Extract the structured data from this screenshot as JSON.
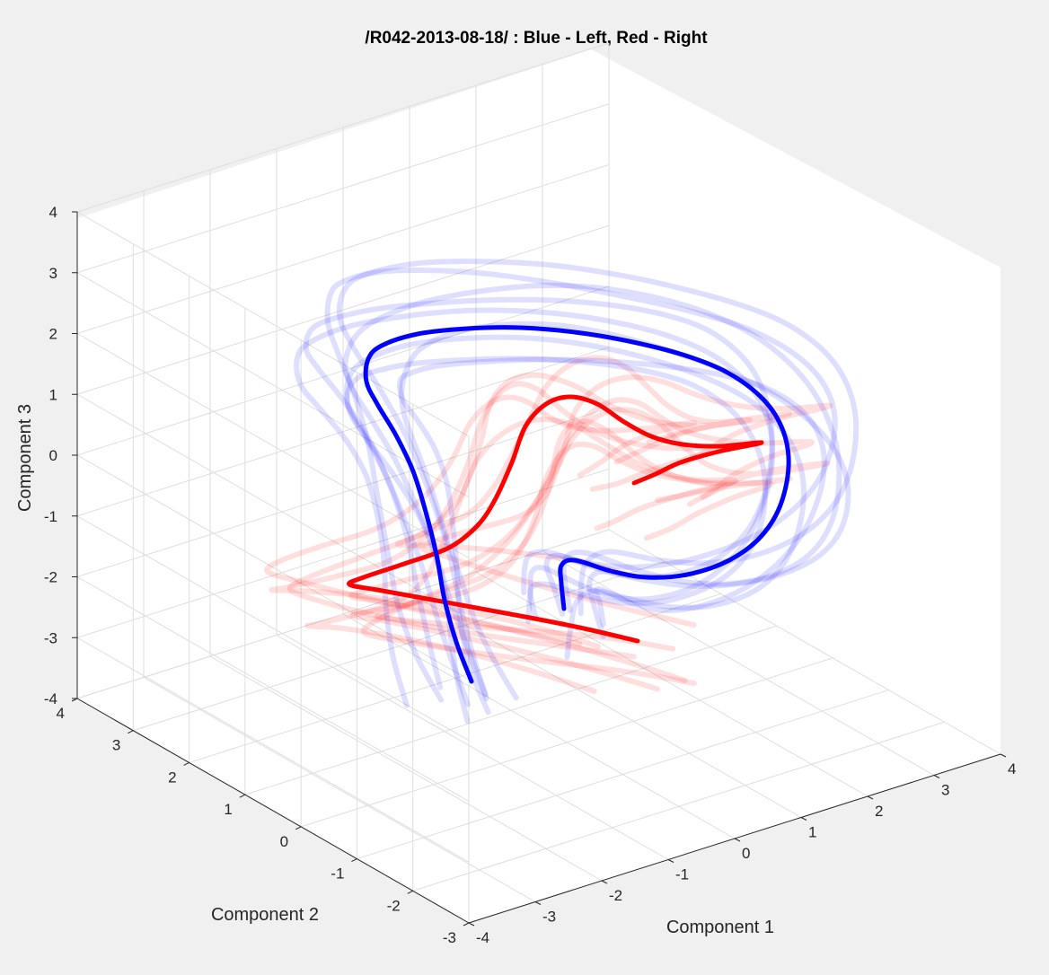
{
  "chart_data": {
    "type": "line3d",
    "title": "/R042-2013-08-18/ : Blue - Left, Red - Right",
    "xlabel": "Component 1",
    "ylabel": "Component 2",
    "zlabel": "Component 3",
    "xlim": [
      -4,
      4
    ],
    "ylim": [
      -3,
      4
    ],
    "zlim": [
      -4,
      4
    ],
    "x_ticks": [
      "-4",
      "-3",
      "-2",
      "-1",
      "0",
      "1",
      "2",
      "3",
      "4"
    ],
    "y_ticks": [
      "-3",
      "-2",
      "-1",
      "0",
      "1",
      "2",
      "3",
      "4"
    ],
    "z_ticks": [
      "-4",
      "-3",
      "-2",
      "-1",
      "0",
      "1",
      "2",
      "3",
      "4"
    ],
    "grid": true,
    "colors": {
      "left": "#0000ff",
      "right": "#ff0000",
      "left_faint": "rgba(0,0,255,0.13)",
      "right_faint": "rgba(255,0,0,0.13)"
    }
  }
}
